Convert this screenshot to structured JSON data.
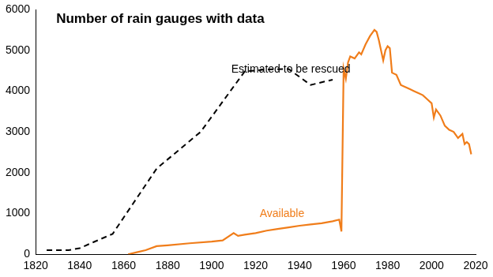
{
  "chart_data": {
    "type": "line",
    "title": "Number of rain gauges with data",
    "xlim": [
      1820,
      2020
    ],
    "xticks": [
      1820,
      1840,
      1860,
      1880,
      1900,
      1920,
      1940,
      1960,
      1980,
      2000,
      2020
    ],
    "ylim": [
      0,
      6000
    ],
    "yticks": [
      0,
      1000,
      2000,
      3000,
      4000,
      5000,
      6000
    ],
    "grid": false,
    "series": [
      {
        "name": "Estimated to be rescued",
        "color": "#000000",
        "line_style": "dashed",
        "x": [
          1825,
          1835,
          1840,
          1855,
          1875,
          1895,
          1915,
          1925,
          1935,
          1945,
          1955
        ],
        "values": [
          100,
          100,
          150,
          500,
          2100,
          3000,
          4480,
          4530,
          4540,
          4150,
          4280
        ]
      },
      {
        "name": "Available",
        "color": "#f07d1a",
        "line_style": "solid",
        "x": [
          1862,
          1866,
          1870,
          1875,
          1880,
          1890,
          1900,
          1905,
          1910,
          1912,
          1915,
          1920,
          1925,
          1930,
          1935,
          1940,
          1945,
          1950,
          1955,
          1958,
          1959,
          1960,
          1961,
          1962,
          1963,
          1965,
          1967,
          1968,
          1970,
          1972,
          1974,
          1975,
          1976,
          1977,
          1978,
          1979,
          1980,
          1981,
          1982,
          1984,
          1986,
          1988,
          1990,
          1992,
          1994,
          1996,
          1998,
          2000,
          2001,
          2002,
          2004,
          2006,
          2008,
          2010,
          2012,
          2014,
          2015,
          2016,
          2017,
          2018
        ],
        "values": [
          0,
          50,
          100,
          200,
          220,
          270,
          310,
          340,
          520,
          450,
          480,
          520,
          580,
          620,
          660,
          700,
          730,
          760,
          810,
          850,
          560,
          4550,
          4300,
          4700,
          4850,
          4800,
          4950,
          4900,
          5150,
          5350,
          5500,
          5450,
          5250,
          5000,
          4750,
          5000,
          5100,
          5050,
          4450,
          4400,
          4150,
          4100,
          4050,
          4000,
          3950,
          3900,
          3800,
          3700,
          3350,
          3550,
          3400,
          3150,
          3050,
          3000,
          2850,
          2950,
          2700,
          2750,
          2700,
          2450
        ]
      }
    ]
  }
}
